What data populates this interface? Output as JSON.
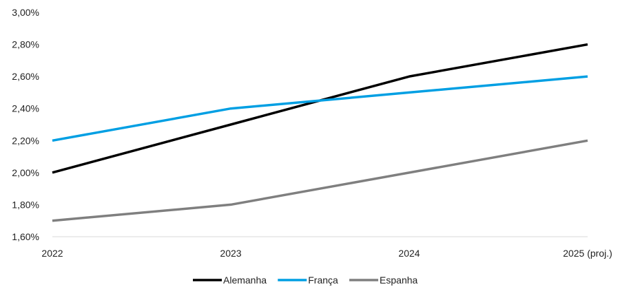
{
  "chart_data": {
    "type": "line",
    "title": "",
    "xlabel": "",
    "ylabel": "",
    "categories": [
      "2022",
      "2023",
      "2024",
      "2025 (proj.)"
    ],
    "ylim": [
      1.6,
      3.0
    ],
    "y_ticks": [
      "1,60%",
      "1,80%",
      "2,00%",
      "2,20%",
      "2,40%",
      "2,60%",
      "2,80%",
      "3,00%"
    ],
    "grid": false,
    "legend_position": "bottom",
    "series": [
      {
        "name": "Alemanha",
        "color": "#000000",
        "values": [
          2.0,
          2.3,
          2.6,
          2.8
        ]
      },
      {
        "name": "França",
        "color": "#009fe3",
        "values": [
          2.2,
          2.4,
          2.5,
          2.6
        ]
      },
      {
        "name": "Espanha",
        "color": "#7f7f7f",
        "values": [
          1.7,
          1.8,
          2.0,
          2.2
        ]
      }
    ]
  }
}
